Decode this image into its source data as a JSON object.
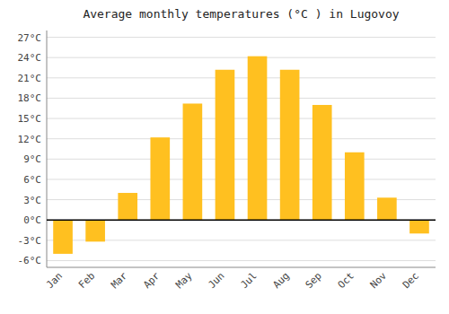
{
  "chart_data": {
    "type": "bar",
    "title": "Average monthly temperatures (°C ) in Lugovoy",
    "categories": [
      "Jan",
      "Feb",
      "Mar",
      "Apr",
      "May",
      "Jun",
      "Jul",
      "Aug",
      "Sep",
      "Oct",
      "Nov",
      "Dec"
    ],
    "values": [
      -5,
      -3.2,
      4,
      12.2,
      17.2,
      22.2,
      24.2,
      22.2,
      17,
      10,
      3.3,
      -2
    ],
    "color": "#FFC020",
    "ylim": [
      -7,
      28
    ],
    "yticks": [
      {
        "value": -6,
        "label": "-6°C"
      },
      {
        "value": -3,
        "label": "-3°C"
      },
      {
        "value": 0,
        "label": "0°C"
      },
      {
        "value": 3,
        "label": "3°C"
      },
      {
        "value": 6,
        "label": "6°C"
      },
      {
        "value": 9,
        "label": "9°C"
      },
      {
        "value": 12,
        "label": "12°C"
      },
      {
        "value": 15,
        "label": "15°C"
      },
      {
        "value": 18,
        "label": "18°C"
      },
      {
        "value": 21,
        "label": "21°C"
      },
      {
        "value": 24,
        "label": "24°C"
      },
      {
        "value": 27,
        "label": "27°C"
      }
    ],
    "grid": true
  }
}
